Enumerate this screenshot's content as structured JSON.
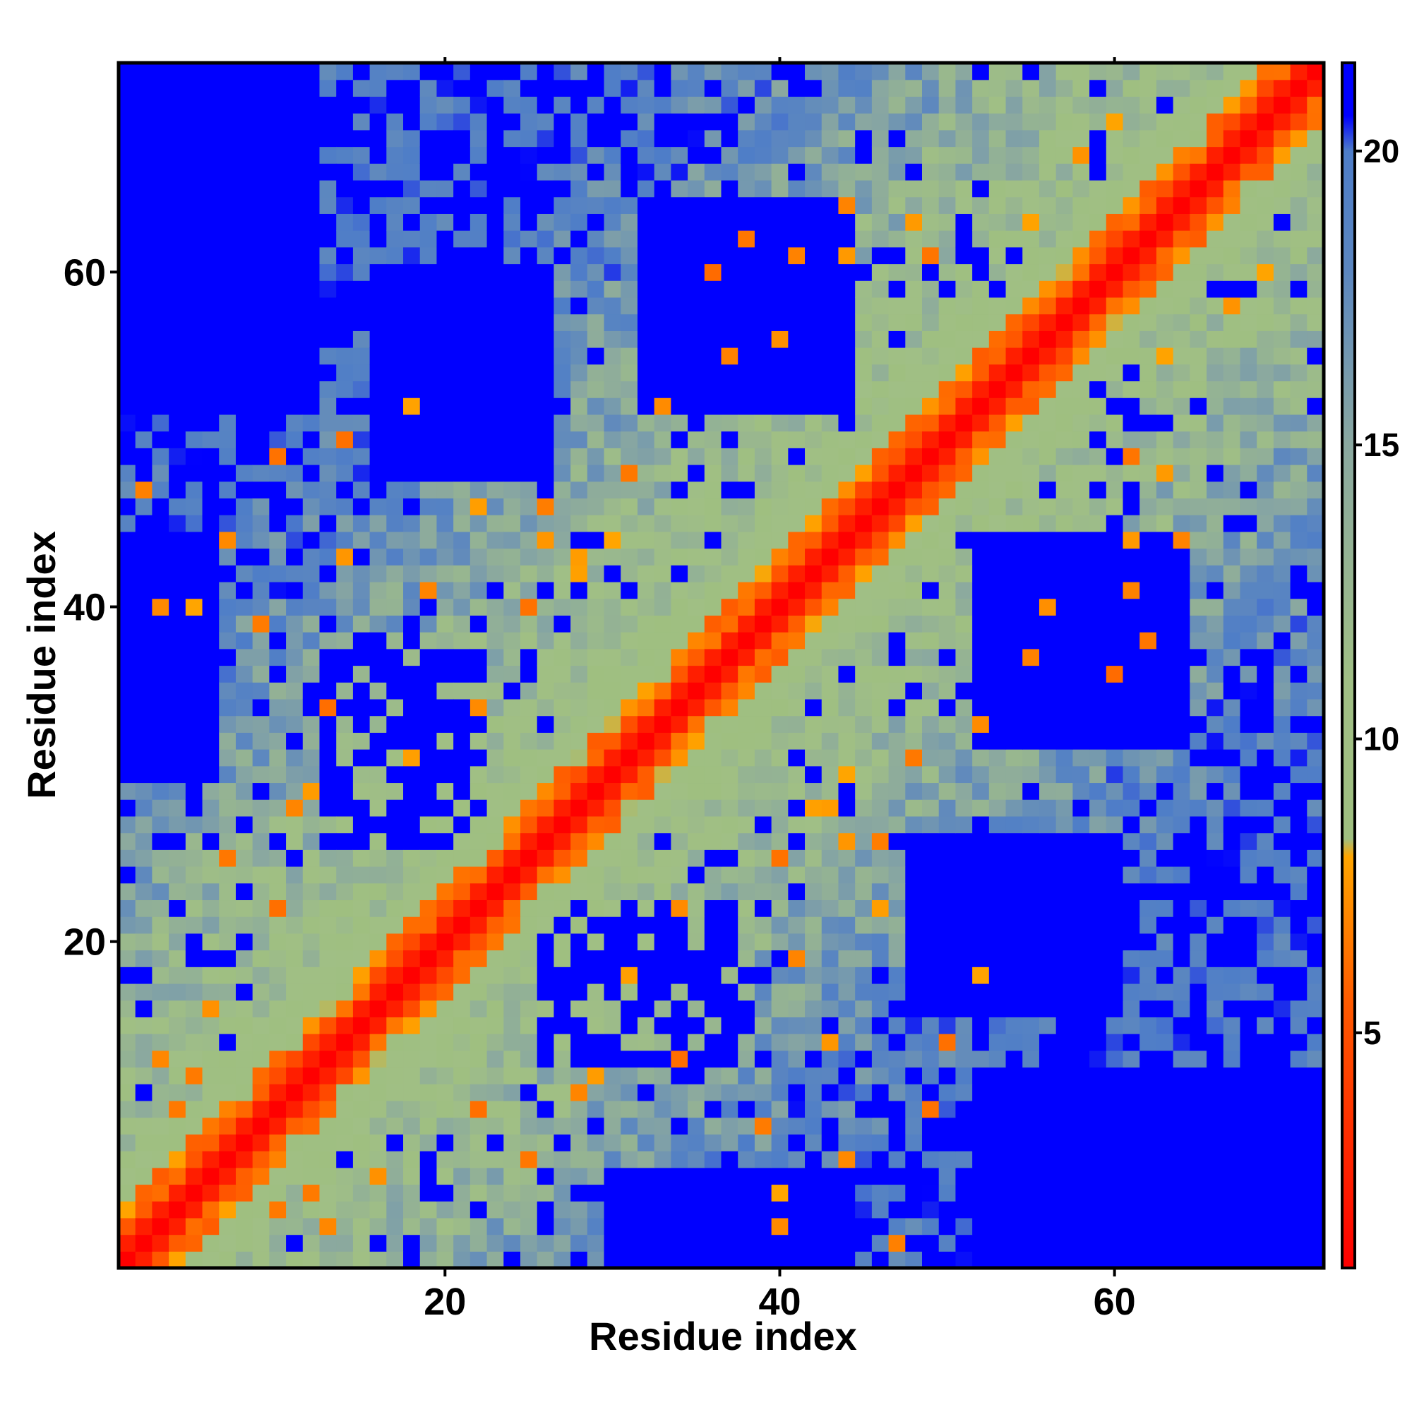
{
  "chart_data": {
    "type": "heatmap",
    "title": "",
    "xlabel": "Residue index",
    "ylabel": "Residue index",
    "n_residues": 72,
    "xlim": [
      0.5,
      72.5
    ],
    "ylim": [
      0.5,
      72.5
    ],
    "x_ticks": [
      20,
      40,
      60
    ],
    "y_ticks": [
      20,
      40,
      60
    ],
    "colorbar": {
      "ticks": [
        5,
        10,
        15,
        20
      ],
      "range": [
        1,
        21.5
      ],
      "colors": [
        {
          "value": 1,
          "color": "#ff0000"
        },
        {
          "value": 5.5,
          "color": "#ff5a00"
        },
        {
          "value": 8,
          "color": "#ffa500"
        },
        {
          "value": 8.3,
          "color": "#9fbf80"
        },
        {
          "value": 11,
          "color": "#a0bf85"
        },
        {
          "value": 15,
          "color": "#8aa8a0"
        },
        {
          "value": 18,
          "color": "#5b86c0"
        },
        {
          "value": 20,
          "color": "#4e7dc8"
        },
        {
          "value": 20.6,
          "color": "#0000ff"
        }
      ]
    },
    "description_of_values": "Pairwise residue distance map; symmetric, distance ~|i-j| near diagonal, saturating (>20) in blue regions",
    "contacts": [
      [
        4,
        10
      ],
      [
        5,
        12
      ],
      [
        6,
        16
      ],
      [
        7,
        25
      ],
      [
        3,
        13
      ],
      [
        10,
        22
      ],
      [
        11,
        28
      ],
      [
        13,
        34
      ],
      [
        18,
        31
      ],
      [
        22,
        34
      ],
      [
        25,
        40
      ],
      [
        26,
        46
      ],
      [
        28,
        42
      ],
      [
        12,
        29
      ],
      [
        9,
        39
      ],
      [
        14,
        43
      ],
      [
        30,
        44
      ],
      [
        31,
        48
      ],
      [
        33,
        52
      ],
      [
        37,
        55
      ],
      [
        40,
        56
      ],
      [
        41,
        61
      ],
      [
        44,
        64
      ],
      [
        44,
        61
      ],
      [
        2,
        47
      ],
      [
        3,
        40
      ],
      [
        7,
        44
      ],
      [
        5,
        40
      ],
      [
        10,
        49
      ],
      [
        14,
        50
      ],
      [
        18,
        52
      ],
      [
        22,
        46
      ],
      [
        19,
        41
      ],
      [
        26,
        44
      ],
      [
        28,
        43
      ],
      [
        48,
        63
      ],
      [
        49,
        61
      ],
      [
        55,
        63
      ],
      [
        58,
        67
      ],
      [
        60,
        69
      ],
      [
        36,
        60
      ],
      [
        38,
        62
      ]
    ]
  }
}
